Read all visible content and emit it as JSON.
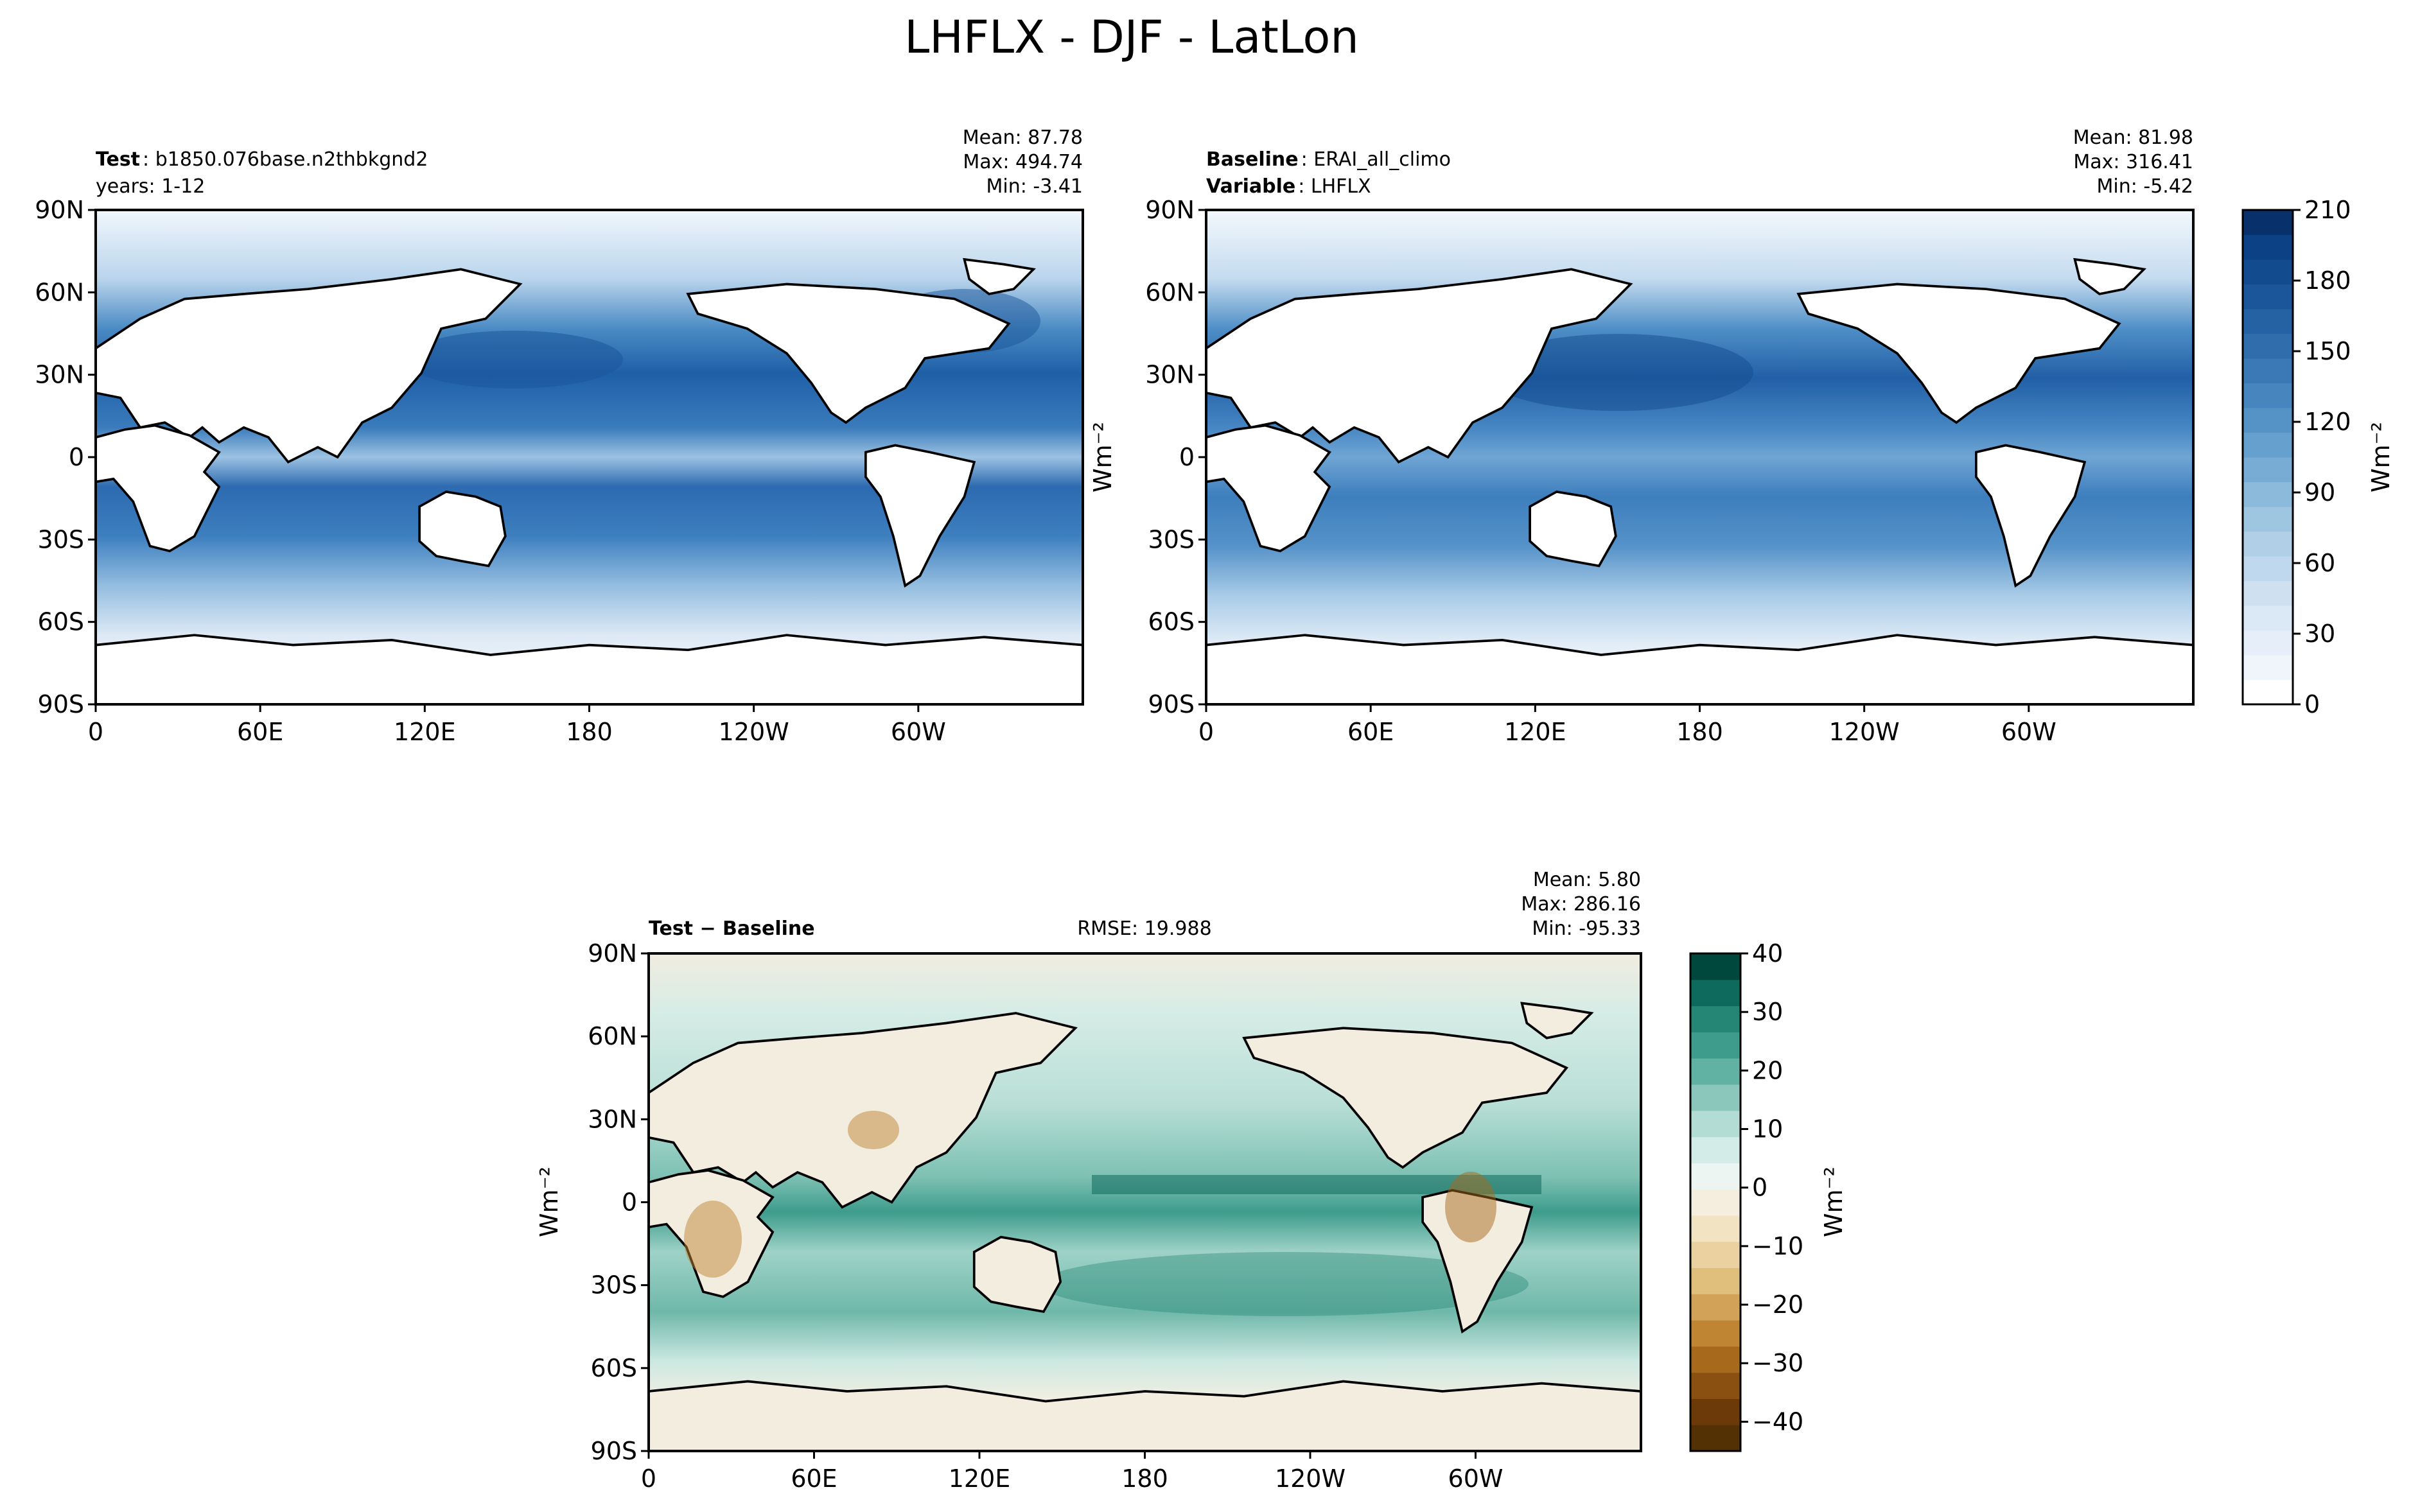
{
  "figure": {
    "title": "LHFLX - DJF - LatLon"
  },
  "lon_ticks": [
    "0",
    "60E",
    "120E",
    "180",
    "120W",
    "60W"
  ],
  "lat_ticks": [
    "90N",
    "60N",
    "30N",
    "0",
    "30S",
    "60S",
    "90S"
  ],
  "test_panel": {
    "label_bold": "Test",
    "label_text": "b1850.076base.n2thbkgnd2",
    "line2": "years: 1-12",
    "stats": {
      "mean": "Mean: 87.78",
      "max": "Max: 494.74",
      "min": "Min: -3.41"
    }
  },
  "baseline_panel": {
    "label_bold": "Baseline",
    "label_text": "ERAI_all_climo",
    "line2_bold": "Variable",
    "line2_text": "LHFLX",
    "stats": {
      "mean": "Mean: 81.98",
      "max": "Max: 316.41",
      "min": "Min: -5.42"
    }
  },
  "diff_panel": {
    "label_bold": "Test − Baseline",
    "rmse": "RMSE: 19.988",
    "stats": {
      "mean": "Mean:  5.80",
      "max": "Max: 286.16",
      "min": "Min: -95.33"
    }
  },
  "colorbar_top": {
    "ticks": [
      "210",
      "180",
      "150",
      "120",
      "90",
      "60",
      "30",
      "0"
    ],
    "unit": "Wm⁻²",
    "range": [
      0,
      210
    ],
    "colors": [
      "#ffffff",
      "#f0f5fb",
      "#e6eff9",
      "#dbe8f5",
      "#cfe0f1",
      "#c0d8ed",
      "#b1cfe7",
      "#9fc6e1",
      "#8cbadb",
      "#78acd5",
      "#66a0cf",
      "#5593c7",
      "#4685be",
      "#3a79b6",
      "#2f6dad",
      "#2562a4",
      "#1c569a",
      "#134b8f",
      "#0c4285",
      "#08306b"
    ]
  },
  "colorbar_diff": {
    "ticks": [
      "40",
      "30",
      "20",
      "10",
      "0",
      "−10",
      "−20",
      "−30",
      "−40"
    ],
    "unit": "Wm⁻²",
    "range": [
      -45,
      40
    ],
    "colors": [
      "#00473d",
      "#0e6a5d",
      "#258676",
      "#3d9c8c",
      "#62b2a3",
      "#8cc7bc",
      "#b2dcd4",
      "#d3ece8",
      "#ecf5f2",
      "#f5eedf",
      "#f2e3c2",
      "#ead19f",
      "#e0be7c",
      "#d1a257",
      "#bf8533",
      "#a7691c",
      "#8a5012",
      "#6b3a08",
      "#543005"
    ]
  }
}
